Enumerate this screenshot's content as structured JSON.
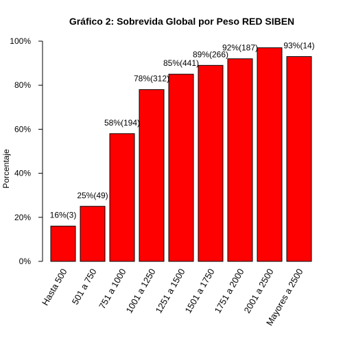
{
  "chart_data": {
    "type": "bar",
    "title": "Gráfico 2: Sobrevida Global por Peso RED SIBEN",
    "xlabel": "",
    "ylabel": "Porcentaje",
    "ylim": [
      0,
      100
    ],
    "yticks": [
      0,
      20,
      40,
      60,
      80,
      100
    ],
    "ytick_labels": [
      "0%",
      "20%",
      "40%",
      "60%",
      "80%",
      "100%"
    ],
    "categories": [
      "Hasta 500",
      "501 a 750",
      "751 a 1000",
      "1001 a 1250",
      "1251 a 1500",
      "1501 a 1750",
      "1751 a 2000",
      "2001 a 2500",
      "Mayores a 2500"
    ],
    "values": [
      16,
      25,
      58,
      78,
      85,
      89,
      92,
      97,
      93
    ],
    "data_labels": [
      "16%(3)",
      "25%(49)",
      "58%(194)",
      "78%(312)",
      "85%(441)",
      "89%(266)",
      "92%(187)",
      "",
      "93%(14)"
    ],
    "bar_color": "#ff0000",
    "grid": false,
    "legend": "none"
  }
}
